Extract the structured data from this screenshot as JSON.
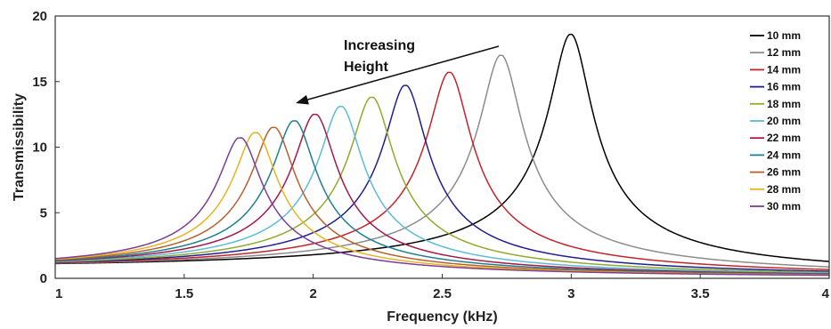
{
  "chart_data": {
    "type": "line",
    "title": "",
    "xlabel": "Frequency (kHz)",
    "ylabel": "Transmissibility",
    "xlim": [
      1,
      4
    ],
    "ylim": [
      0,
      20
    ],
    "xticks": [
      "1",
      "1.5",
      "2",
      "2.5",
      "3",
      "3.5",
      "4"
    ],
    "yticks": [
      "0",
      "5",
      "10",
      "15",
      "20"
    ],
    "grid": false,
    "legend_position": "top-right",
    "annotation": {
      "line1": "Increasing",
      "line2": "Height"
    },
    "series": [
      {
        "name": "10 mm",
        "color": "#000000",
        "peak_freq": 3.0,
        "peak_value": 18.6
      },
      {
        "name": "12 mm",
        "color": "#8c8c8c",
        "peak_freq": 2.73,
        "peak_value": 17.0
      },
      {
        "name": "14 mm",
        "color": "#c0262b",
        "peak_freq": 2.53,
        "peak_value": 15.7
      },
      {
        "name": "16 mm",
        "color": "#1f1f8f",
        "peak_freq": 2.36,
        "peak_value": 14.7
      },
      {
        "name": "18 mm",
        "color": "#8faa2c",
        "peak_freq": 2.23,
        "peak_value": 13.8
      },
      {
        "name": "20 mm",
        "color": "#5cbcd8",
        "peak_freq": 2.11,
        "peak_value": 13.1
      },
      {
        "name": "22 mm",
        "color": "#a3194a",
        "peak_freq": 2.01,
        "peak_value": 12.5
      },
      {
        "name": "24 mm",
        "color": "#1f7f8f",
        "peak_freq": 1.93,
        "peak_value": 12.0
      },
      {
        "name": "26 mm",
        "color": "#b5602f",
        "peak_freq": 1.85,
        "peak_value": 11.5
      },
      {
        "name": "28 mm",
        "color": "#e6b422",
        "peak_freq": 1.78,
        "peak_value": 11.1
      },
      {
        "name": "30 mm",
        "color": "#7d3c98",
        "peak_freq": 1.72,
        "peak_value": 10.7
      }
    ]
  }
}
